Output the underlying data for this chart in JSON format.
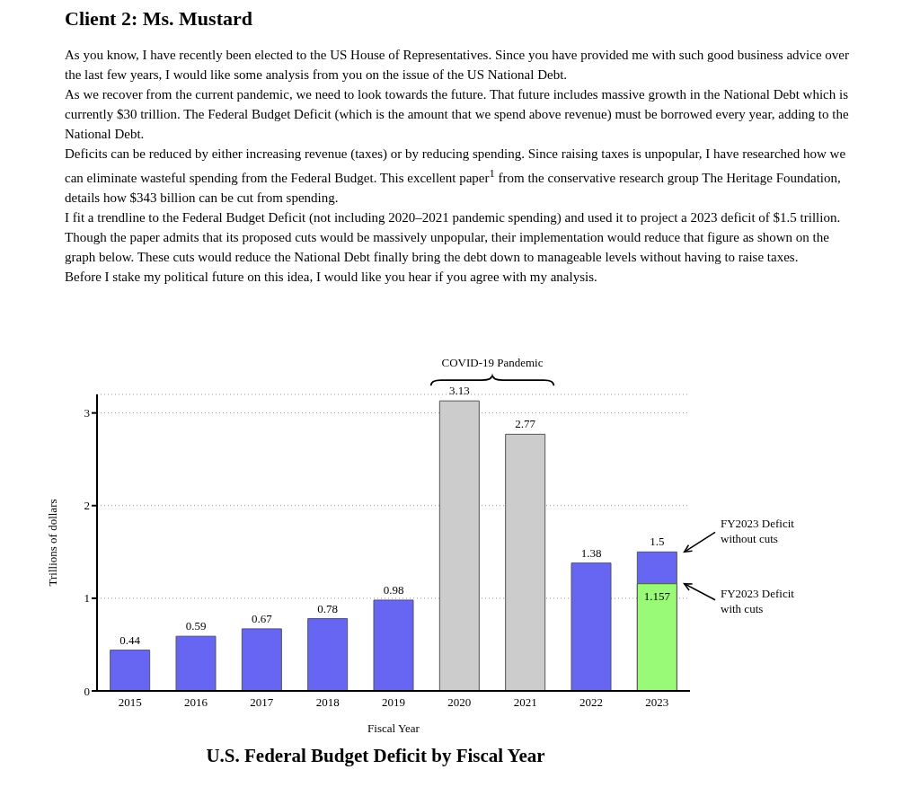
{
  "chart_data": {
    "type": "bar",
    "title": "U.S. Federal Budget Deficit by Fiscal Year",
    "xlabel": "Fiscal Year",
    "ylabel": "Trillions of dollars",
    "categories": [
      "2015",
      "2016",
      "2017",
      "2018",
      "2019",
      "2020",
      "2021",
      "2022",
      "2023"
    ],
    "series": [
      {
        "colors": [
          "#6666f2",
          "#6666f2",
          "#6666f2",
          "#6666f2",
          "#6666f2",
          "#cccccc",
          "#cccccc",
          "#6666f2",
          "#6666f2"
        ],
        "values": [
          0.44,
          0.59,
          0.67,
          0.78,
          0.98,
          3.13,
          2.77,
          1.38,
          1.5
        ],
        "value_labels": [
          "0.44",
          "0.59",
          "0.67",
          "0.78",
          "0.98",
          "3.13",
          "2.77",
          "1.38",
          "1.5"
        ]
      },
      {
        "color": "#99fa77",
        "values": [
          null,
          null,
          null,
          null,
          null,
          null,
          null,
          null,
          1.157
        ],
        "value_labels": [
          null,
          null,
          null,
          null,
          null,
          null,
          null,
          null,
          "1.157"
        ]
      }
    ],
    "ylim": [
      0,
      3.2
    ],
    "yticks": [
      0,
      1,
      2,
      3
    ],
    "grid": "y",
    "annotations": [
      "Client 2: Ms. Mustard",
      "As you know, I have recently been elected to the US House of Representatives. Since you have provided me with such good business advice over the last few years, I would like some analysis from you on the issue of the US National Debt.",
      "As we recover from the current pandemic, we need to look towards the future. That future includes massive growth in the National Debt which is currently $30 trillion. The Federal Budget Deficit (which is the amount that we spend above revenue) must be borrowed every year, adding to the National Debt.",
      "Deficits can be reduced by either increasing revenue (taxes) or by reducing spending. Since raising taxes is unpopular, I have researched how we can eliminate wasteful spending from the Federal Budget. This excellent paper$^{1}$ from the conservative research group The Heritage Foundation, details how $343 billion can be cut from spending.",
      "I fit a trendline to the Federal Budget Deficit (not including 2020–2021 pandemic spending) and used it to project a 2023 deficit of $1.5 trillion. Though the paper admits that its proposed cuts would be massively unpopular, their implementation would reduce that figure as shown on the graph below. These cuts would reduce the National Debt finally bring the debt down to manageable levels without having to raise taxes.",
      "Before I stake my political future on this idea, I would like you hear if you agree with my analysis.",
      "COVID-19 Pandemic",
      "FY2023 Deficit without cuts",
      "FY2023 Deficit with cuts"
    ]
  }
}
